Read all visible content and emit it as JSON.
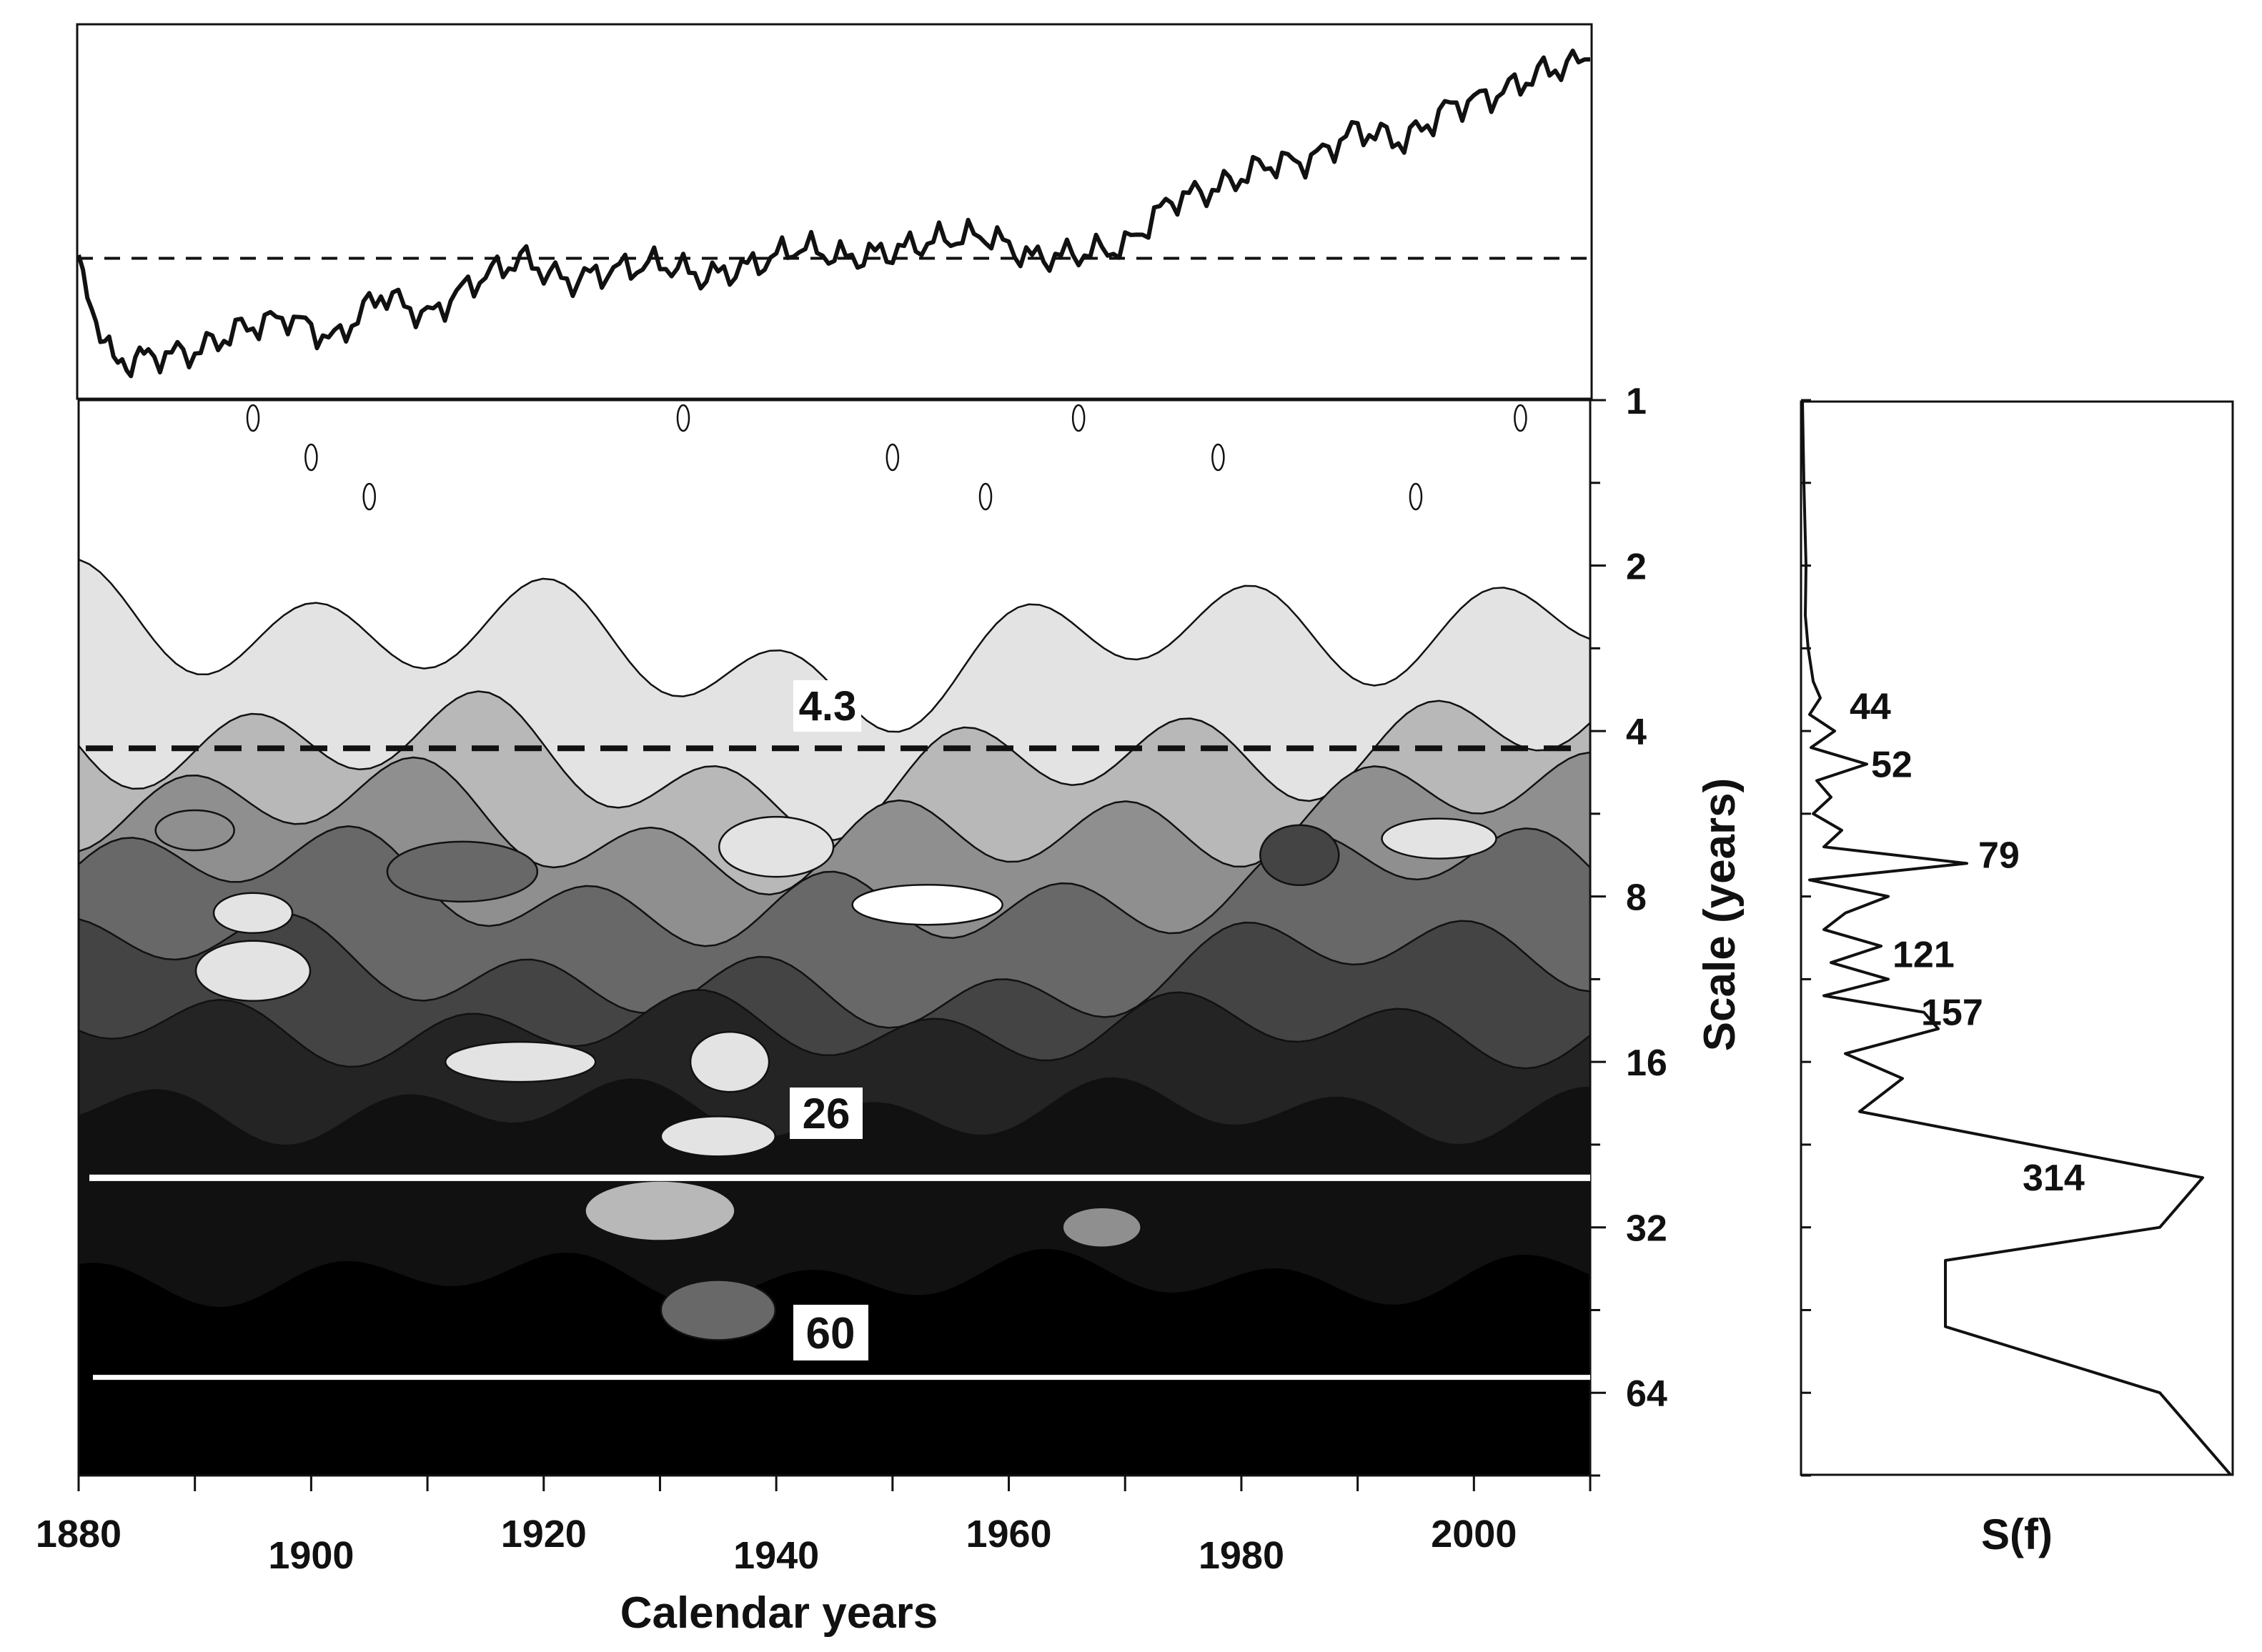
{
  "colors": {
    "bg": "#ffffff",
    "ink": "#111111",
    "levels": [
      "#ffffff",
      "#e3e3e3",
      "#b8b8b8",
      "#8f8f8f",
      "#686868",
      "#444444",
      "#242424",
      "#111111",
      "#000000"
    ]
  },
  "chart_data": [
    {
      "type": "line",
      "name": "time-series",
      "title": "",
      "x": [
        1880,
        1883,
        1886,
        1890,
        1894,
        1898,
        1902,
        1906,
        1910,
        1914,
        1918,
        1922,
        1926,
        1930,
        1934,
        1938,
        1942,
        1946,
        1950,
        1954,
        1958,
        1962,
        1966,
        1970,
        1974,
        1978,
        1982,
        1986,
        1990,
        1994,
        1998,
        2002,
        2006,
        2010
      ],
      "y": [
        -0.05,
        -0.45,
        -0.42,
        -0.4,
        -0.3,
        -0.25,
        -0.35,
        -0.15,
        -0.25,
        -0.1,
        0.0,
        -0.1,
        -0.05,
        -0.02,
        -0.08,
        -0.03,
        0.05,
        0.0,
        0.03,
        0.08,
        0.1,
        0.0,
        0.02,
        0.05,
        0.25,
        0.3,
        0.4,
        0.42,
        0.55,
        0.5,
        0.65,
        0.7,
        0.8,
        0.85
      ],
      "reference_line": 0.0,
      "xlim": [
        1880,
        2010
      ],
      "ylim": [
        -0.6,
        1.0
      ]
    },
    {
      "type": "heatmap",
      "name": "wavelet-scalogram",
      "xlabel": "Calendar years",
      "ylabel": "Scale (years)",
      "x_ticks": [
        "1880",
        "1900",
        "1920",
        "1940",
        "1960",
        "1980",
        "2000"
      ],
      "y_ticks": [
        "1",
        "2",
        "4",
        "8",
        "16",
        "32",
        "64"
      ],
      "xlim": [
        1880,
        2010
      ],
      "ylim_log2": [
        0,
        6.5
      ],
      "scale_lines": [
        {
          "scale": 4.3,
          "style": "dashed",
          "label": "4.3"
        },
        {
          "scale": 26,
          "style": "solid-white",
          "label": "26"
        },
        {
          "scale": 60,
          "style": "solid-white",
          "label": "60"
        }
      ],
      "level_bands_log2": [
        1.3,
        2.0,
        2.4,
        2.8,
        3.3,
        3.8,
        4.3,
        5.3
      ],
      "blobs": [
        {
          "year": 1890,
          "log2": 2.6,
          "level": 3
        },
        {
          "year": 1940,
          "log2": 2.7,
          "level": 1
        },
        {
          "year": 1953,
          "log2": 3.05,
          "level": 0
        },
        {
          "year": 1985,
          "log2": 2.75,
          "level": 5
        },
        {
          "year": 1997,
          "log2": 2.65,
          "level": 1
        },
        {
          "year": 1913,
          "log2": 2.85,
          "level": 4
        },
        {
          "year": 1895,
          "log2": 3.1,
          "level": 1
        },
        {
          "year": 1895,
          "log2": 3.45,
          "level": 1
        },
        {
          "year": 1918,
          "log2": 4.0,
          "level": 1
        },
        {
          "year": 1936,
          "log2": 4.0,
          "level": 1
        },
        {
          "year": 1935,
          "log2": 4.45,
          "level": 1
        },
        {
          "year": 1930,
          "log2": 4.9,
          "level": 2
        },
        {
          "year": 1968,
          "log2": 5.0,
          "level": 3
        },
        {
          "year": 1935,
          "log2": 5.5,
          "level": 4
        }
      ]
    },
    {
      "type": "line",
      "name": "global-spectrum",
      "xlabel": "S(f)",
      "ylim_log2": [
        0,
        6.5
      ],
      "log2_scale": [
        0.0,
        0.5,
        1.0,
        1.3,
        1.5,
        1.7,
        1.8,
        1.9,
        2.0,
        2.1,
        2.2,
        2.3,
        2.4,
        2.5,
        2.6,
        2.7,
        2.8,
        2.9,
        3.0,
        3.1,
        3.2,
        3.3,
        3.4,
        3.5,
        3.6,
        3.7,
        3.8,
        3.95,
        4.1,
        4.3,
        4.7,
        5.0,
        5.2,
        5.3,
        5.6,
        6.0,
        6.5
      ],
      "power": [
        0,
        2,
        5,
        4,
        8,
        15,
        25,
        10,
        45,
        12,
        90,
        20,
        40,
        15,
        55,
        30,
        230,
        10,
        120,
        60,
        30,
        110,
        40,
        120,
        30,
        170,
        190,
        60,
        140,
        80,
        560,
        500,
        200,
        200,
        200,
        500,
        600
      ],
      "peak_labels": [
        {
          "label": "44",
          "log2": 1.85
        },
        {
          "label": "52",
          "log2": 2.2
        },
        {
          "label": "79",
          "log2": 2.75
        },
        {
          "label": "121",
          "log2": 3.35
        },
        {
          "label": "157",
          "log2": 3.7
        },
        {
          "label": "314",
          "log2": 4.7
        }
      ],
      "xlim": [
        0,
        600
      ]
    }
  ]
}
